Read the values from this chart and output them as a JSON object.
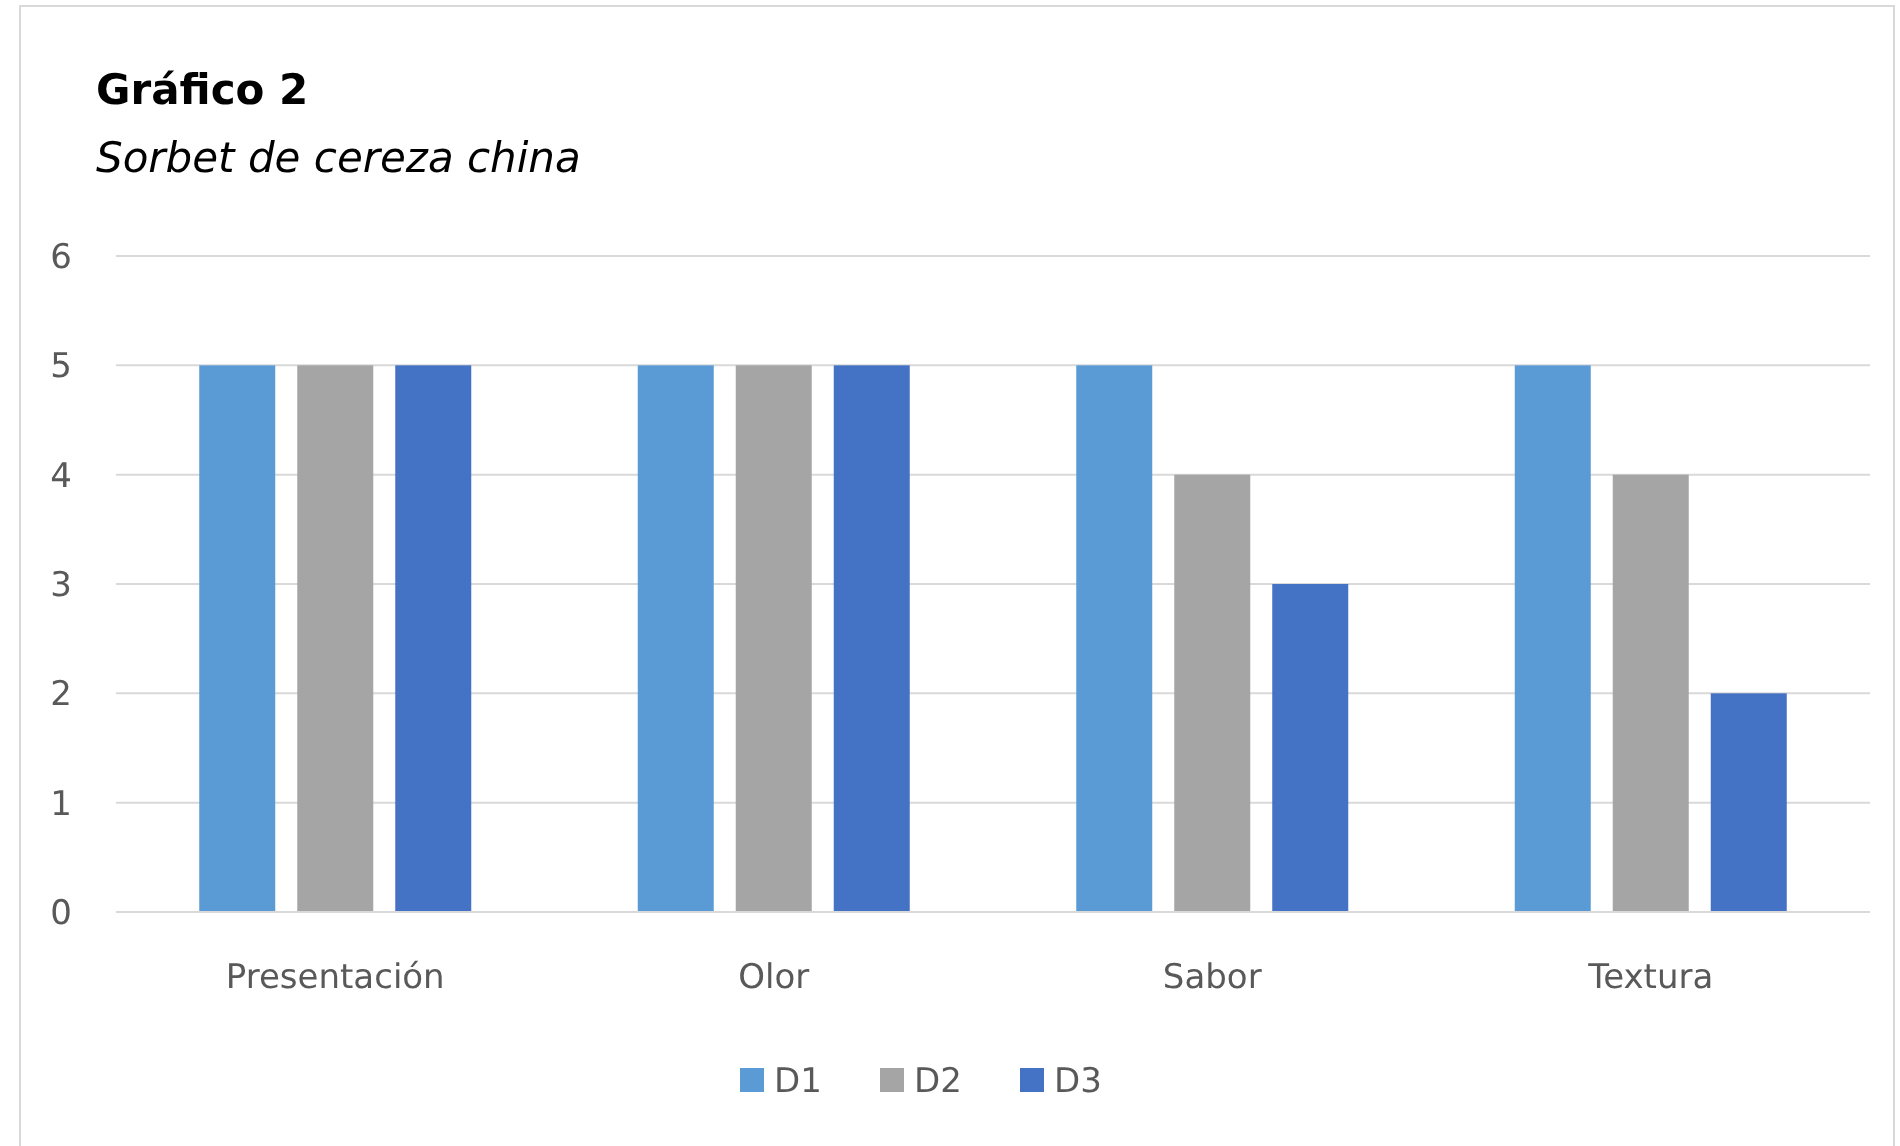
{
  "chart_data": {
    "type": "bar",
    "title": "Gráfico 2",
    "subtitle": "Sorbet de cereza china",
    "categories": [
      "Presentación",
      "Olor",
      "Sabor",
      "Textura"
    ],
    "series": [
      {
        "name": "D1",
        "color": "#5b9bd5",
        "values": [
          5,
          5,
          5,
          5
        ]
      },
      {
        "name": "D2",
        "color": "#a5a5a5",
        "values": [
          5,
          5,
          4,
          4
        ]
      },
      {
        "name": "D3",
        "color": "#4472c4",
        "values": [
          5,
          5,
          3,
          2
        ]
      }
    ],
    "ylim": [
      0,
      6
    ],
    "yticks": [
      0,
      1,
      2,
      3,
      4,
      5,
      6
    ],
    "grid": "y",
    "legend": "bottom"
  }
}
